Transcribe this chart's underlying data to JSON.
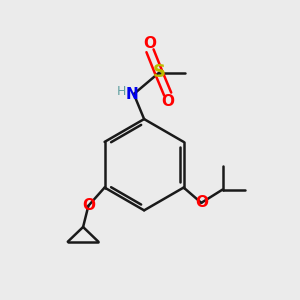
{
  "bg_color": "#ebebeb",
  "bond_color": "#1a1a1a",
  "colors": {
    "N": "#0000ee",
    "O": "#ff0000",
    "S": "#bbbb00",
    "H": "#5f9ea0",
    "C": "#1a1a1a"
  },
  "lw": 1.8
}
